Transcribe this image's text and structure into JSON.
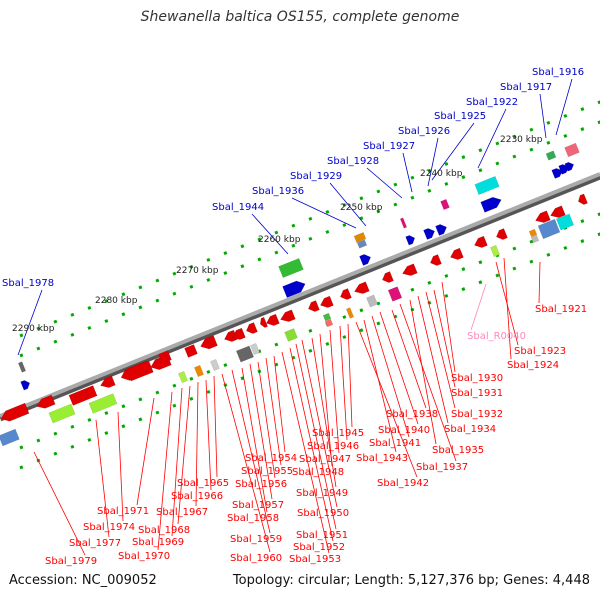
{
  "title": "Shewanella baltica OS155, complete genome",
  "accession": "Accession: NC_009052",
  "summary": "Topology: circular; Length: 5,127,376 bp; Genes: 4,448",
  "colors": {
    "backbone": "#8a8a8a",
    "reverse_strand": "#e00000",
    "forward_strand": "#0000cc",
    "tick": "#00aa00",
    "rna_label": "#ff88bb",
    "label_line_red": "#ff0000",
    "label_line_blue": "#0000cc"
  },
  "scale_labels": [
    "2230 kbp",
    "2240 kbp",
    "2250 kbp",
    "2260 kbp",
    "2270 kbp",
    "2280 kbp",
    "2290 kbp"
  ],
  "top_labels": [
    "Sbal_1916",
    "Sbal_1917",
    "Sbal_1922",
    "Sbal_1925",
    "Sbal_1926",
    "Sbal_1927",
    "Sbal_1928",
    "Sbal_1929",
    "Sbal_1936",
    "Sbal_1944",
    "Sbal_1978"
  ],
  "bottom_labels": [
    "Sbal_1921",
    "Sbal_R0040",
    "Sbal_1923",
    "Sbal_1924",
    "Sbal_1930",
    "Sbal_1931",
    "Sbal_1932",
    "Sbal_1934",
    "Sbal_1935",
    "Sbal_1937",
    "Sbal_1938",
    "Sbal_1940",
    "Sbal_1941",
    "Sbal_1943",
    "Sbal_1942",
    "Sbal_1945",
    "Sbal_1946",
    "Sbal_1947",
    "Sbal_1948",
    "Sbal_1949",
    "Sbal_1950",
    "Sbal_1951",
    "Sbal_1952",
    "Sbal_1953",
    "Sbal_1954",
    "Sbal_1955",
    "Sbal_1956",
    "Sbal_1957",
    "Sbal_1958",
    "Sbal_1959",
    "Sbal_1960",
    "Sbal_1965",
    "Sbal_1966",
    "Sbal_1967",
    "Sbal_1968",
    "Sbal_1969",
    "Sbal_1970",
    "Sbal_1971",
    "Sbal_1974",
    "Sbal_1977",
    "Sbal_1979"
  ]
}
